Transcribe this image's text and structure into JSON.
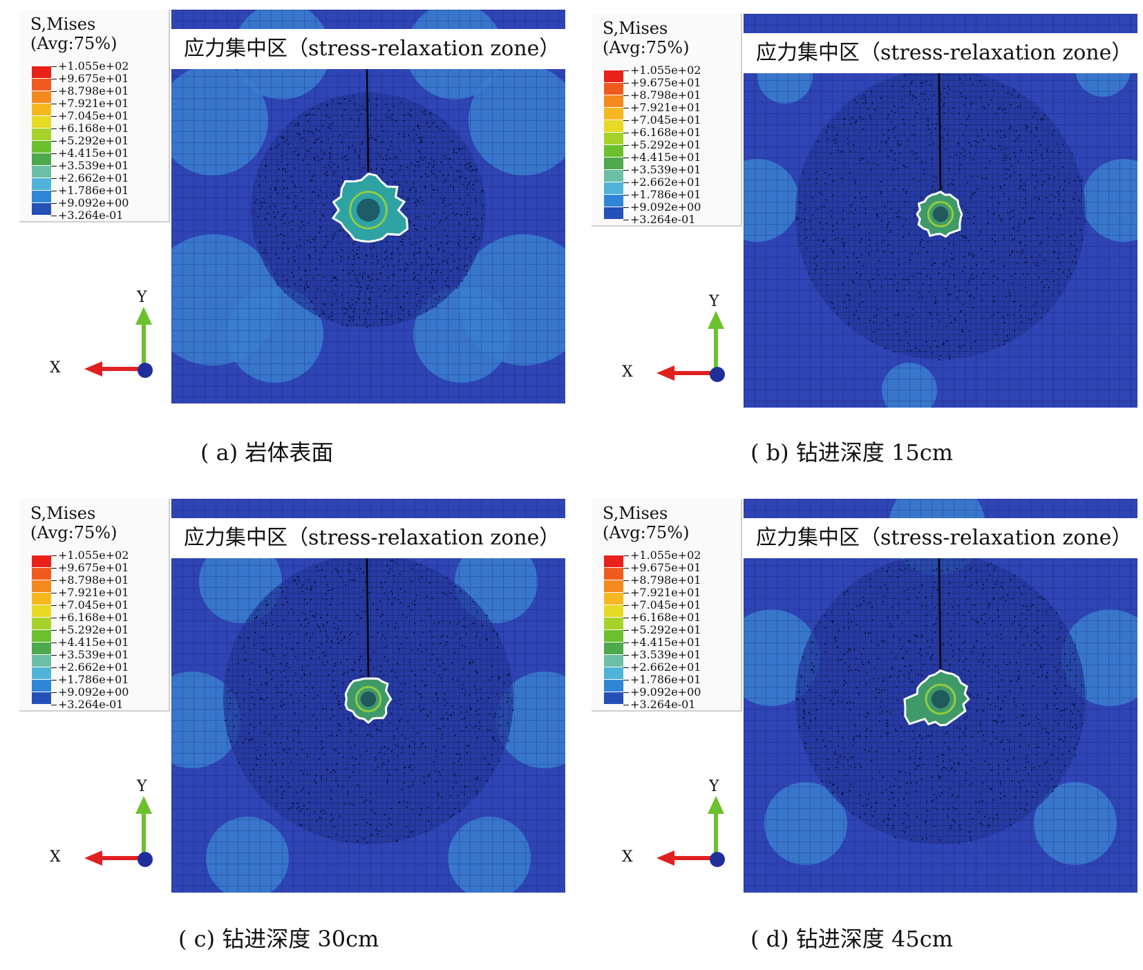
{
  "legend": {
    "title_line1": "S,Mises",
    "title_line2": "(Avg:75%)",
    "levels": [
      "+1.055e+02",
      "+9.675e+01",
      "+8.798e+01",
      "+7.921e+01",
      "+7.045e+01",
      "+6.168e+01",
      "+5.292e+01",
      "+4.415e+01",
      "+3.539e+01",
      "+2.662e+01",
      "+1.786e+01",
      "+9.092e+00",
      "+3.264e-01"
    ],
    "colors": [
      "#e8221a",
      "#f05a1c",
      "#f48a1e",
      "#f6b81f",
      "#e6da24",
      "#a6d22a",
      "#6cc02e",
      "#4ea84c",
      "#6cbfa4",
      "#4fb4d8",
      "#2f86d6",
      "#2450b8",
      "#1f2f9a"
    ]
  },
  "zone_label": "应力集中区（stress-relaxation zone）",
  "axes": {
    "x": "X",
    "y": "Y"
  },
  "panels": [
    {
      "caption": "( a)  岩体表面"
    },
    {
      "caption": "( b)  钻进深度 15cm"
    },
    {
      "caption": "( c)  钻进深度 30cm"
    },
    {
      "caption": "( d)  钻进深度 45cm"
    }
  ]
}
